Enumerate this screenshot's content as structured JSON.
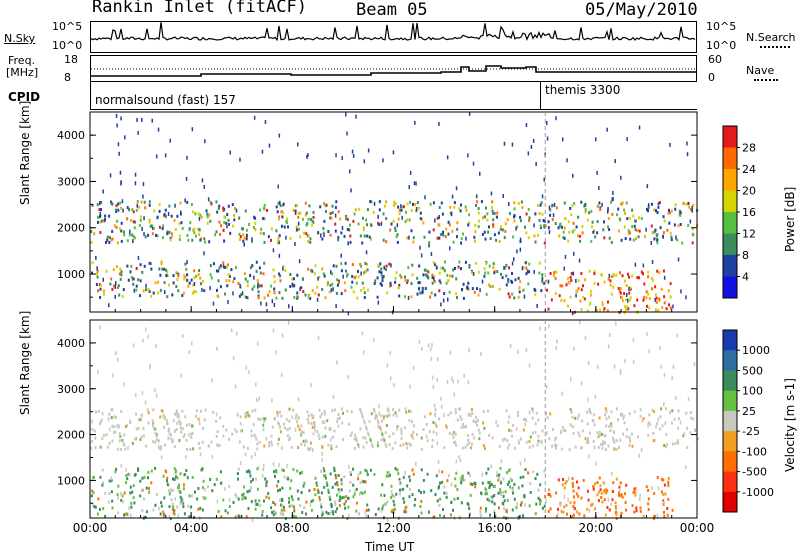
{
  "header": {
    "station": "Rankin Inlet (fitACF)",
    "beam": "Beam 05",
    "date": "05/May/2010"
  },
  "panels": {
    "nsky": {
      "left_label": "N.Sky",
      "left_ticks": [
        "10^5",
        "10^0"
      ],
      "right_ticks": [
        "10^5",
        "10^0"
      ],
      "right_label": "N.Search",
      "right_style": "dotted"
    },
    "freq": {
      "left_label_1": "Freq.",
      "left_label_2": "[MHz]",
      "left_ticks": [
        "18",
        "8"
      ],
      "right_ticks": [
        "60",
        "0"
      ],
      "right_label": "Nave",
      "right_style": "dotted"
    },
    "cpid": {
      "label": "CPID",
      "programs": [
        {
          "name": "normalsound (fast) 157",
          "start_hour": 0
        },
        {
          "name": "themis 3300",
          "start_hour": 18
        }
      ]
    }
  },
  "power_colorbar": {
    "title": "Power [dB]",
    "ticks": [
      "28",
      "24",
      "20",
      "16",
      "12",
      "8",
      "4"
    ],
    "colors": [
      "#e41a1c",
      "#ff6a00",
      "#ffa500",
      "#d4d400",
      "#55c040",
      "#3c8c5c",
      "#2040a0",
      "#1010e0"
    ]
  },
  "velocity_colorbar": {
    "title": "Velocity [m s-1]",
    "ticks": [
      "1000",
      "500",
      "100",
      "25",
      "-25",
      "-100",
      "-500",
      "-1000"
    ],
    "colors": [
      "#1a3ab0",
      "#2c6ea0",
      "#3c8c5c",
      "#66c040",
      "#c8c8c0",
      "#f0a020",
      "#ff7000",
      "#ff3010",
      "#e00000"
    ]
  },
  "chart_data": [
    {
      "type": "heatmap",
      "title": "",
      "xlabel": "",
      "ylabel": "Slant Range [km]",
      "xlim": [
        0,
        24
      ],
      "ylim": [
        180,
        4500
      ],
      "x_ticks": [
        "00:00",
        "04:00",
        "08:00",
        "12:00",
        "16:00",
        "20:00",
        "00:00"
      ],
      "y_ticks": [
        1000,
        2000,
        3000,
        4000
      ],
      "series": [
        {
          "region": "upper-band",
          "start_hour": 0,
          "end_hour": 24,
          "range_km": [
            1700,
            2600
          ],
          "power_db": 14
        },
        {
          "region": "lower-band",
          "start_hour": 0,
          "end_hour": 18,
          "range_km": [
            500,
            1300
          ],
          "power_db": 20
        },
        {
          "region": "near-range",
          "start_hour": 18,
          "end_hour": 23,
          "range_km": [
            200,
            1100
          ],
          "power_db": 22
        }
      ]
    },
    {
      "type": "heatmap",
      "title": "",
      "xlabel": "Time UT",
      "ylabel": "Slant Range [km]",
      "xlim": [
        0,
        24
      ],
      "ylim": [
        180,
        4500
      ],
      "x_ticks": [
        "00:00",
        "04:00",
        "08:00",
        "12:00",
        "16:00",
        "20:00",
        "00:00"
      ],
      "y_ticks": [
        1000,
        2000,
        3000,
        4000
      ],
      "series": [
        {
          "region": "upper-band",
          "start_hour": 0,
          "end_hour": 24,
          "range_km": [
            1700,
            2600
          ],
          "velocity": 0
        },
        {
          "region": "lower-band",
          "start_hour": 0,
          "end_hour": 18,
          "range_km": [
            200,
            1300
          ],
          "velocity": 100
        },
        {
          "region": "near-range",
          "start_hour": 18,
          "end_hour": 23,
          "range_km": [
            200,
            1100
          ],
          "velocity": -500
        }
      ]
    }
  ]
}
